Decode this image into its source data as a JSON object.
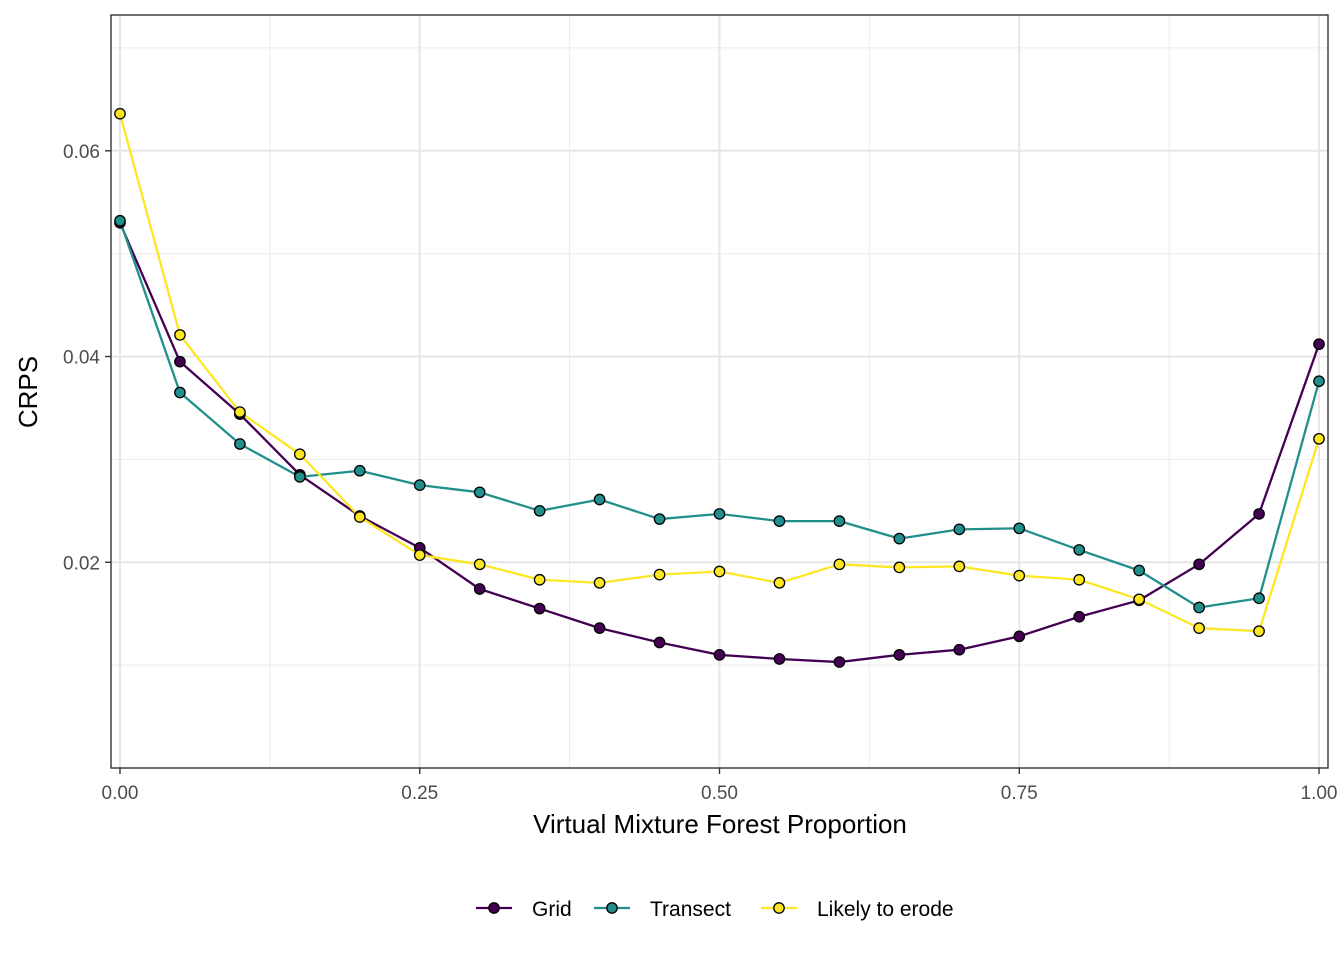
{
  "chart_data": {
    "type": "line",
    "title": "",
    "xlabel": "Virtual Mixture Forest Proportion",
    "ylabel": "CRPS",
    "xlim": [
      -0.0075,
      1.0075
    ],
    "ylim": [
      0.0,
      0.0732
    ],
    "x_ticks": [
      {
        "value": 0.0,
        "label": "0.00"
      },
      {
        "value": 0.25,
        "label": "0.25"
      },
      {
        "value": 0.5,
        "label": "0.50"
      },
      {
        "value": 0.75,
        "label": "0.75"
      },
      {
        "value": 1.0,
        "label": "1.00"
      }
    ],
    "y_ticks": [
      {
        "value": 0.02,
        "label": "0.02"
      },
      {
        "value": 0.04,
        "label": "0.04"
      },
      {
        "value": 0.06,
        "label": "0.06"
      }
    ],
    "x_minor": [
      0.125,
      0.375,
      0.625,
      0.875
    ],
    "y_minor": [
      0.01,
      0.03,
      0.05,
      0.07
    ],
    "x": [
      0.0,
      0.05,
      0.1,
      0.15,
      0.2,
      0.25,
      0.3,
      0.35,
      0.4,
      0.45,
      0.5,
      0.55,
      0.6,
      0.65,
      0.7,
      0.75,
      0.8,
      0.85,
      0.9,
      0.95,
      1.0
    ],
    "series": [
      {
        "name": "Grid",
        "color": "#440154",
        "values": [
          0.053,
          0.0395,
          0.0344,
          0.0285,
          0.0245,
          0.0214,
          0.0174,
          0.0155,
          0.0136,
          0.0122,
          0.011,
          0.0106,
          0.0103,
          0.011,
          0.0115,
          0.0128,
          0.0147,
          0.0163,
          0.0198,
          0.0247,
          0.0412
        ]
      },
      {
        "name": "Transect",
        "color": "#21908C",
        "values": [
          0.0532,
          0.0365,
          0.0315,
          0.0283,
          0.0289,
          0.0275,
          0.0268,
          0.025,
          0.0261,
          0.0242,
          0.0247,
          0.024,
          0.024,
          0.0223,
          0.0232,
          0.0233,
          0.0212,
          0.0192,
          0.0156,
          0.0165,
          0.0376
        ]
      },
      {
        "name": "Likely to erode",
        "color": "#FDE725",
        "values": [
          0.0636,
          0.0421,
          0.0346,
          0.0305,
          0.0244,
          0.0207,
          0.0198,
          0.0183,
          0.018,
          0.0188,
          0.0191,
          0.018,
          0.0198,
          0.0195,
          0.0196,
          0.0187,
          0.0183,
          0.0164,
          0.0136,
          0.0133,
          0.032
        ]
      }
    ],
    "legend_position": "bottom",
    "grid": true
  }
}
